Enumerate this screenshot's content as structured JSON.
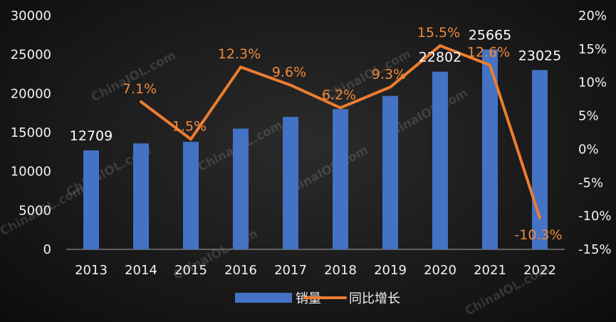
{
  "chart_data": {
    "type": "bar+line",
    "categories": [
      "2013",
      "2014",
      "2015",
      "2016",
      "2017",
      "2018",
      "2019",
      "2020",
      "2021",
      "2022"
    ],
    "series": [
      {
        "name": "销量",
        "type": "bar",
        "axis": "left",
        "color": "#4472c4",
        "values": [
          12709,
          13600,
          13800,
          15500,
          17000,
          18000,
          19700,
          22802,
          25665,
          23025
        ],
        "data_labels": {
          "0": "12709",
          "7": "22802",
          "8": "25665",
          "9": "23025"
        }
      },
      {
        "name": "同比增长",
        "type": "line",
        "axis": "right",
        "color": "#ed7d31",
        "values": [
          null,
          7.1,
          1.5,
          12.3,
          9.6,
          6.2,
          9.3,
          15.5,
          12.6,
          -10.3
        ],
        "data_labels": {
          "1": "7.1%",
          "2": "1.5%",
          "3": "12.3%",
          "4": "9.6%",
          "5": "6.2%",
          "6": "9.3%",
          "7": "15.5%",
          "8": "12.6%",
          "9": "-10.3%"
        }
      }
    ],
    "y_left": {
      "min": 0,
      "max": 30000,
      "ticks": [
        "0",
        "5000",
        "10000",
        "15000",
        "20000",
        "25000",
        "30000"
      ]
    },
    "y_right": {
      "min": -15,
      "max": 20,
      "ticks": [
        "-15%",
        "-10%",
        "-5%",
        "0%",
        "5%",
        "10%",
        "15%",
        "20%"
      ]
    },
    "legend": {
      "position": "bottom",
      "items": [
        "销量",
        "同比增长"
      ]
    },
    "grid": false,
    "title": "",
    "xlabel": "",
    "ylabel": ""
  },
  "watermark": "ChinaIOL.com"
}
